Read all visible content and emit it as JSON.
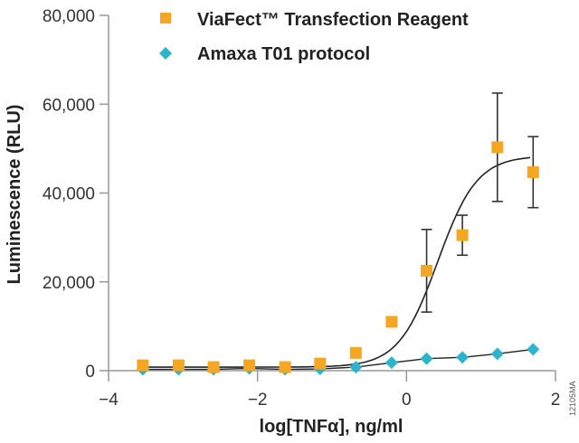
{
  "chart_data": {
    "type": "scatter",
    "title": "",
    "xlabel": "log[TNFα], ng/ml",
    "ylabel": "Luminescence (RLU)",
    "xlim": [
      -4,
      2
    ],
    "ylim": [
      0,
      80000
    ],
    "xticks": [
      -4,
      -2,
      0,
      2
    ],
    "xtick_labels": [
      "−4",
      "−2",
      "0",
      "2"
    ],
    "yticks": [
      0,
      20000,
      40000,
      60000,
      80000
    ],
    "ytick_labels": [
      "0",
      "20,000",
      "40,000",
      "60,000",
      "80,000"
    ],
    "grid": false,
    "legend_position": "top",
    "series": [
      {
        "name": "ViaFect™ Transfection Reagent",
        "marker": "square",
        "color": "#f5a623",
        "x": [
          -3.54,
          -3.06,
          -2.59,
          -2.11,
          -1.63,
          -1.16,
          -0.68,
          -0.2,
          0.27,
          0.75,
          1.22,
          1.7
        ],
        "y": [
          1200,
          1200,
          800,
          1200,
          800,
          1600,
          4000,
          11000,
          22500,
          30500,
          50300,
          44700
        ],
        "error": [
          0,
          0,
          0,
          0,
          0,
          0,
          0,
          0,
          9300,
          4500,
          12200,
          8000
        ],
        "fit": "sigmoid"
      },
      {
        "name": "Amaxa T01 protocol",
        "marker": "diamond",
        "color": "#2eb3cc",
        "x": [
          -3.54,
          -3.06,
          -2.59,
          -2.11,
          -1.63,
          -1.16,
          -0.68,
          -0.2,
          0.27,
          0.75,
          1.22,
          1.7
        ],
        "y": [
          300,
          300,
          300,
          500,
          300,
          400,
          800,
          1800,
          2700,
          3000,
          3800,
          4800
        ],
        "fit": "line"
      }
    ],
    "annotation": "12105MA"
  }
}
